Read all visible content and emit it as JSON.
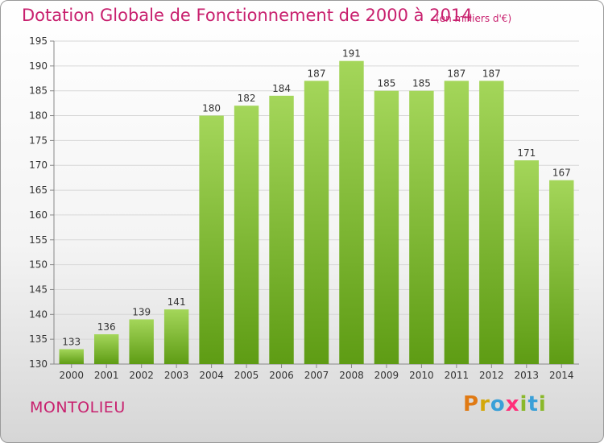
{
  "header": {
    "title": "Dotation Globale de Fonctionnement de 2000 à 2014",
    "unit": "(en milliers d'€)"
  },
  "commune": "MONTOLIEU",
  "logo": {
    "text": "Proxiti"
  },
  "colors": {
    "title": "#c8206e",
    "bar_top": "#a4d65a",
    "bar_bottom": "#5e9c14",
    "grid": "#d8d8d8"
  },
  "chart_data": {
    "type": "bar",
    "title": "Dotation Globale de Fonctionnement de 2000 à 2014",
    "subtitle": "(en milliers d'€)",
    "xlabel": "",
    "ylabel": "",
    "ylim": [
      130,
      195
    ],
    "yticks": [
      130,
      135,
      140,
      145,
      150,
      155,
      160,
      165,
      170,
      175,
      180,
      185,
      190,
      195
    ],
    "grid": true,
    "categories": [
      "2000",
      "2001",
      "2002",
      "2003",
      "2004",
      "2005",
      "2006",
      "2007",
      "2008",
      "2009",
      "2010",
      "2011",
      "2012",
      "2013",
      "2014"
    ],
    "values": [
      133,
      136,
      139,
      141,
      180,
      182,
      184,
      187,
      191,
      185,
      185,
      187,
      187,
      171,
      167
    ]
  }
}
